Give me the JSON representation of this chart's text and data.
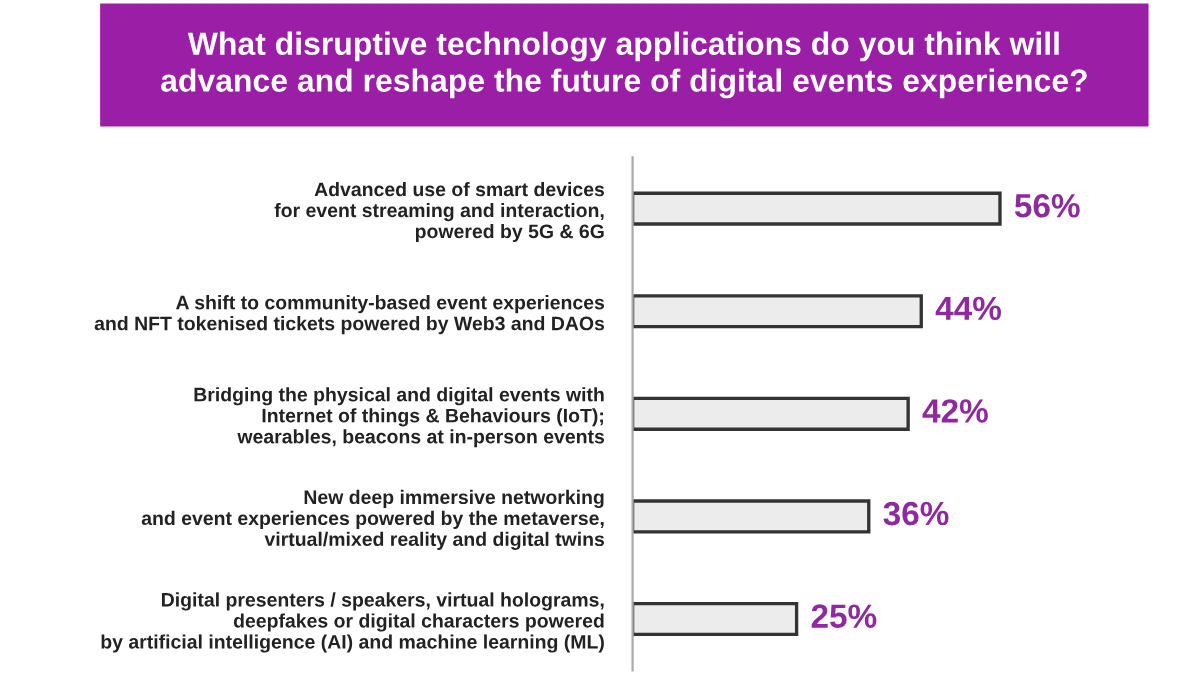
{
  "chart_data": {
    "type": "bar",
    "orientation": "horizontal",
    "title": "What disruptive technology applications do you think will\nadvance and reshape the future of digital events experience?",
    "categories": [
      "Advanced use of smart devices\nfor event streaming and interaction,\npowered by 5G & 6G",
      "A shift to community-based event experiences\nand NFT tokenised tickets powered by Web3 and DAOs",
      "Bridging the physical and digital events with\nInternet of things & Behaviours (IoT);\nwearables, beacons at in-person events",
      "New deep immersive networking\nand event experiences powered by the metaverse,\nvirtual/mixed reality and digital twins",
      "Digital presenters / speakers, virtual holograms,\ndeepfakes or digital characters powered\nby artificial intelligence (AI) and machine learning (ML)"
    ],
    "values": [
      56,
      44,
      42,
      36,
      25
    ],
    "value_labels": [
      "56%",
      "44%",
      "42%",
      "36%",
      "25%"
    ],
    "color": "#ececec",
    "tick_labels": "y",
    "grid": false,
    "legend": false
  }
}
